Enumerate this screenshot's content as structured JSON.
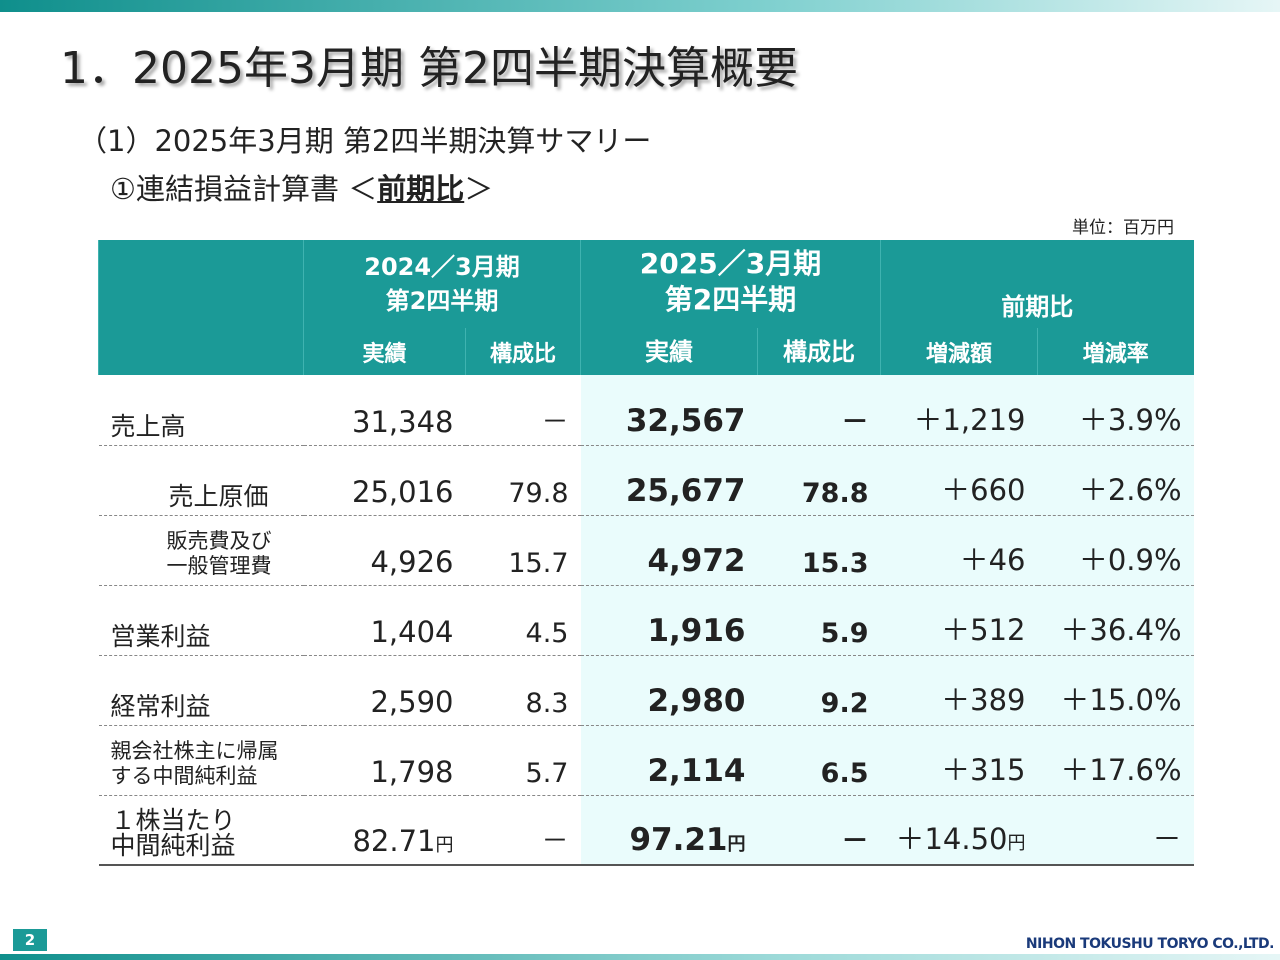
{
  "title": "1．2025年3月期 第2四半期決算概要",
  "subtitle": "（1）2025年3月期 第2四半期決算サマリー",
  "section_prefix": "①連結損益計算書 ＜",
  "section_em": "前期比",
  "section_suffix": "＞",
  "unit": "単位：百万円",
  "header": {
    "prev_period": "2024／3月期",
    "prev_q": "第2四半期",
    "cur_period": "2025／3月期",
    "cur_q": "第2四半期",
    "comparison": "前期比",
    "actual": "実績",
    "ratio": "構成比",
    "change_amount": "増減額",
    "change_rate": "増減率"
  },
  "rows": [
    {
      "label": "売上高",
      "prev": "31,348",
      "prev_ratio": "－",
      "cur": "32,567",
      "cur_ratio": "－",
      "diff": "＋1,219",
      "rate": "＋3.9%"
    },
    {
      "label": "売上原価",
      "prev": "25,016",
      "prev_ratio": "79.8",
      "cur": "25,677",
      "cur_ratio": "78.8",
      "diff": "＋660",
      "rate": "＋2.6%"
    },
    {
      "label": "販売費及び",
      "label2": "一般管理費",
      "prev": "4,926",
      "prev_ratio": "15.7",
      "cur": "4,972",
      "cur_ratio": "15.3",
      "diff": "＋46",
      "rate": "＋0.9%"
    },
    {
      "label": "営業利益",
      "prev": "1,404",
      "prev_ratio": "4.5",
      "cur": "1,916",
      "cur_ratio": "5.9",
      "diff": "＋512",
      "rate": "＋36.4%"
    },
    {
      "label": "経常利益",
      "prev": "2,590",
      "prev_ratio": "8.3",
      "cur": "2,980",
      "cur_ratio": "9.2",
      "diff": "＋389",
      "rate": "＋15.0%"
    },
    {
      "label": "親会社株主に帰属",
      "label2": "する中間純利益",
      "prev": "1,798",
      "prev_ratio": "5.7",
      "cur": "2,114",
      "cur_ratio": "6.5",
      "diff": "＋315",
      "rate": "＋17.6%"
    },
    {
      "label": "１株当たり",
      "label2": "中間純利益",
      "prev": "82.71",
      "prev_ratio": "－",
      "cur": "97.21",
      "cur_ratio": "－",
      "diff": "＋14.50",
      "rate": "－",
      "yen": "円"
    }
  ],
  "page_number": "2",
  "company": "NIHON TOKUSHU TORYO CO.,LTD."
}
